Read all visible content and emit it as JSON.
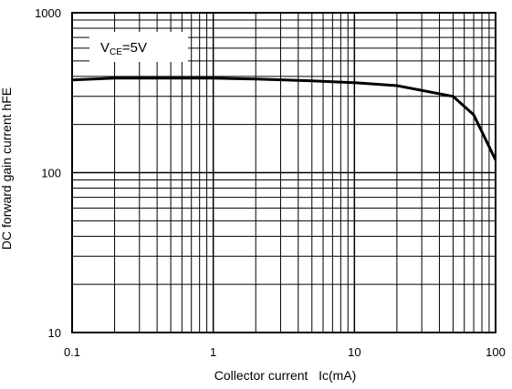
{
  "chart_data": {
    "type": "line",
    "xlabel": "Collector current   Ic(mA)",
    "ylabel": "DC forward gain current  hFE",
    "x_scale": "log",
    "y_scale": "log",
    "xlim": [
      0.1,
      100
    ],
    "ylim": [
      10,
      1000
    ],
    "x_ticks": [
      "0.1",
      "1",
      "10",
      "100"
    ],
    "y_ticks": [
      "10",
      "100",
      "1000"
    ],
    "grid": true,
    "annotation": {
      "main": "V",
      "sub": "CE",
      "rest": "=5V"
    },
    "series": [
      {
        "x": [
          0.1,
          0.2,
          0.5,
          1,
          2,
          5,
          10,
          20,
          50,
          70,
          100
        ],
        "y": [
          380,
          390,
          390,
          390,
          385,
          375,
          365,
          350,
          300,
          230,
          120
        ]
      }
    ]
  }
}
